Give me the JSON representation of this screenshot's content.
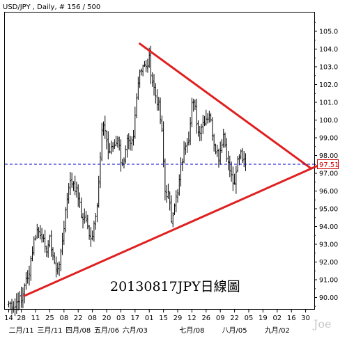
{
  "header": {
    "title": "USD/JPY , Daily, # 156 / 500"
  },
  "overlay_text": "20130817JPY日線圖",
  "watermark": "Joe",
  "colors": {
    "bar": "#000000",
    "trendline": "#e02020",
    "price_line": "#0000cc",
    "price_box_border": "#cc0000",
    "price_box_text": "#cc0000",
    "frame": "#000000",
    "background": "#ffffff"
  },
  "chart_data": {
    "type": "ohlc",
    "title": "USD/JPY , Daily, # 156 / 500",
    "ylim": [
      89.3,
      106.3
    ],
    "y_ticks": [
      90.0,
      91.0,
      92.0,
      93.0,
      94.0,
      95.0,
      96.0,
      97.0,
      98.0,
      99.0,
      100.0,
      101.0,
      102.0,
      103.0,
      104.0,
      105.0
    ],
    "y_tick_labels": [
      "90.00",
      "91.00",
      "92.00",
      "93.00",
      "94.00",
      "95.00",
      "96.00",
      "97.00",
      "98.00",
      "99.00",
      "100.0",
      "101.0",
      "102.0",
      "103.0",
      "104.0",
      "105.0"
    ],
    "x_day_ticks": [
      {
        "bar": 0,
        "label": "14"
      },
      {
        "bar": 8,
        "label": "28"
      },
      {
        "bar": 17,
        "label": "11"
      },
      {
        "bar": 26,
        "label": "25"
      },
      {
        "bar": 35,
        "label": "08"
      },
      {
        "bar": 44,
        "label": "22"
      },
      {
        "bar": 53,
        "label": "08"
      },
      {
        "bar": 62,
        "label": "20"
      },
      {
        "bar": 71,
        "label": "03"
      },
      {
        "bar": 80,
        "label": "17"
      },
      {
        "bar": 89,
        "label": "01"
      },
      {
        "bar": 98,
        "label": "15"
      },
      {
        "bar": 107,
        "label": "29"
      },
      {
        "bar": 116,
        "label": "12"
      },
      {
        "bar": 125,
        "label": "26"
      },
      {
        "bar": 134,
        "label": "09"
      },
      {
        "bar": 143,
        "label": "22"
      },
      {
        "bar": 152,
        "label": "05"
      },
      {
        "bar": 161,
        "label": "19"
      },
      {
        "bar": 170,
        "label": "02"
      },
      {
        "bar": 179,
        "label": "16"
      },
      {
        "bar": 188,
        "label": "30"
      }
    ],
    "x_month_ticks": [
      {
        "bar": 8,
        "label": "二月/11"
      },
      {
        "bar": 26,
        "label": "三月/11"
      },
      {
        "bar": 44,
        "label": "四月/08"
      },
      {
        "bar": 62,
        "label": "五月/06"
      },
      {
        "bar": 80,
        "label": "六月/03"
      },
      {
        "bar": 116,
        "label": "七月/08"
      },
      {
        "bar": 143,
        "label": "八月/05"
      },
      {
        "bar": 170,
        "label": "九月/02"
      }
    ],
    "last_price": 97.51,
    "last_price_label": "97.51",
    "trendlines": [
      {
        "name": "upper",
        "from": {
          "bar": 83,
          "price": 104.3
        },
        "to": {
          "bar": 191,
          "price": 97.3
        }
      },
      {
        "name": "lower",
        "from": {
          "bar": 10,
          "price": 90.1
        },
        "to": {
          "bar": 195,
          "price": 97.4
        }
      }
    ],
    "series": [
      {
        "style": "ohlc",
        "anchors": [
          [
            0,
            89.7
          ],
          [
            4,
            89.5
          ],
          [
            6,
            90.0
          ],
          [
            8,
            89.7
          ],
          [
            10,
            90.8
          ],
          [
            12,
            91.0
          ],
          [
            16,
            93.2
          ],
          [
            18,
            93.8
          ],
          [
            21,
            93.6
          ],
          [
            23,
            92.6
          ],
          [
            26,
            93.2
          ],
          [
            28,
            92.4
          ],
          [
            30,
            91.5
          ],
          [
            33,
            92.3
          ],
          [
            36,
            94.9
          ],
          [
            38,
            96.4
          ],
          [
            41,
            96.5
          ],
          [
            44,
            95.7
          ],
          [
            46,
            94.6
          ],
          [
            49,
            94.4
          ],
          [
            51,
            93.4
          ],
          [
            53,
            93.6
          ],
          [
            56,
            95.4
          ],
          [
            58,
            97.8
          ],
          [
            59,
            99.4
          ],
          [
            61,
            99.5
          ],
          [
            63,
            98.2
          ],
          [
            65,
            98.3
          ],
          [
            67,
            98.6
          ],
          [
            69,
            99.1
          ],
          [
            71,
            97.8
          ],
          [
            73,
            97.6
          ],
          [
            75,
            98.7
          ],
          [
            77,
            98.5
          ],
          [
            79,
            99.0
          ],
          [
            81,
            101.5
          ],
          [
            83,
            102.8
          ],
          [
            85,
            103.1
          ],
          [
            87,
            102.9
          ],
          [
            89,
            103.4
          ],
          [
            91,
            102.2
          ],
          [
            93,
            101.4
          ],
          [
            95,
            100.8
          ],
          [
            97,
            99.3
          ],
          [
            99,
            96.0
          ],
          [
            101,
            95.8
          ],
          [
            103,
            94.4
          ],
          [
            105,
            95.4
          ],
          [
            107,
            95.8
          ],
          [
            109,
            97.3
          ],
          [
            112,
            98.7
          ],
          [
            114,
            99.1
          ],
          [
            116,
            101.0
          ],
          [
            118,
            100.6
          ],
          [
            120,
            99.3
          ],
          [
            122,
            99.7
          ],
          [
            124,
            100.0
          ],
          [
            127,
            100.4
          ],
          [
            130,
            98.8
          ],
          [
            133,
            97.9
          ],
          [
            136,
            99.2
          ],
          [
            139,
            97.5
          ],
          [
            141,
            96.8
          ],
          [
            143,
            96.2
          ],
          [
            145,
            97.7
          ],
          [
            147,
            98.3
          ],
          [
            149,
            97.6
          ],
          [
            150,
            97.5
          ]
        ]
      }
    ]
  }
}
